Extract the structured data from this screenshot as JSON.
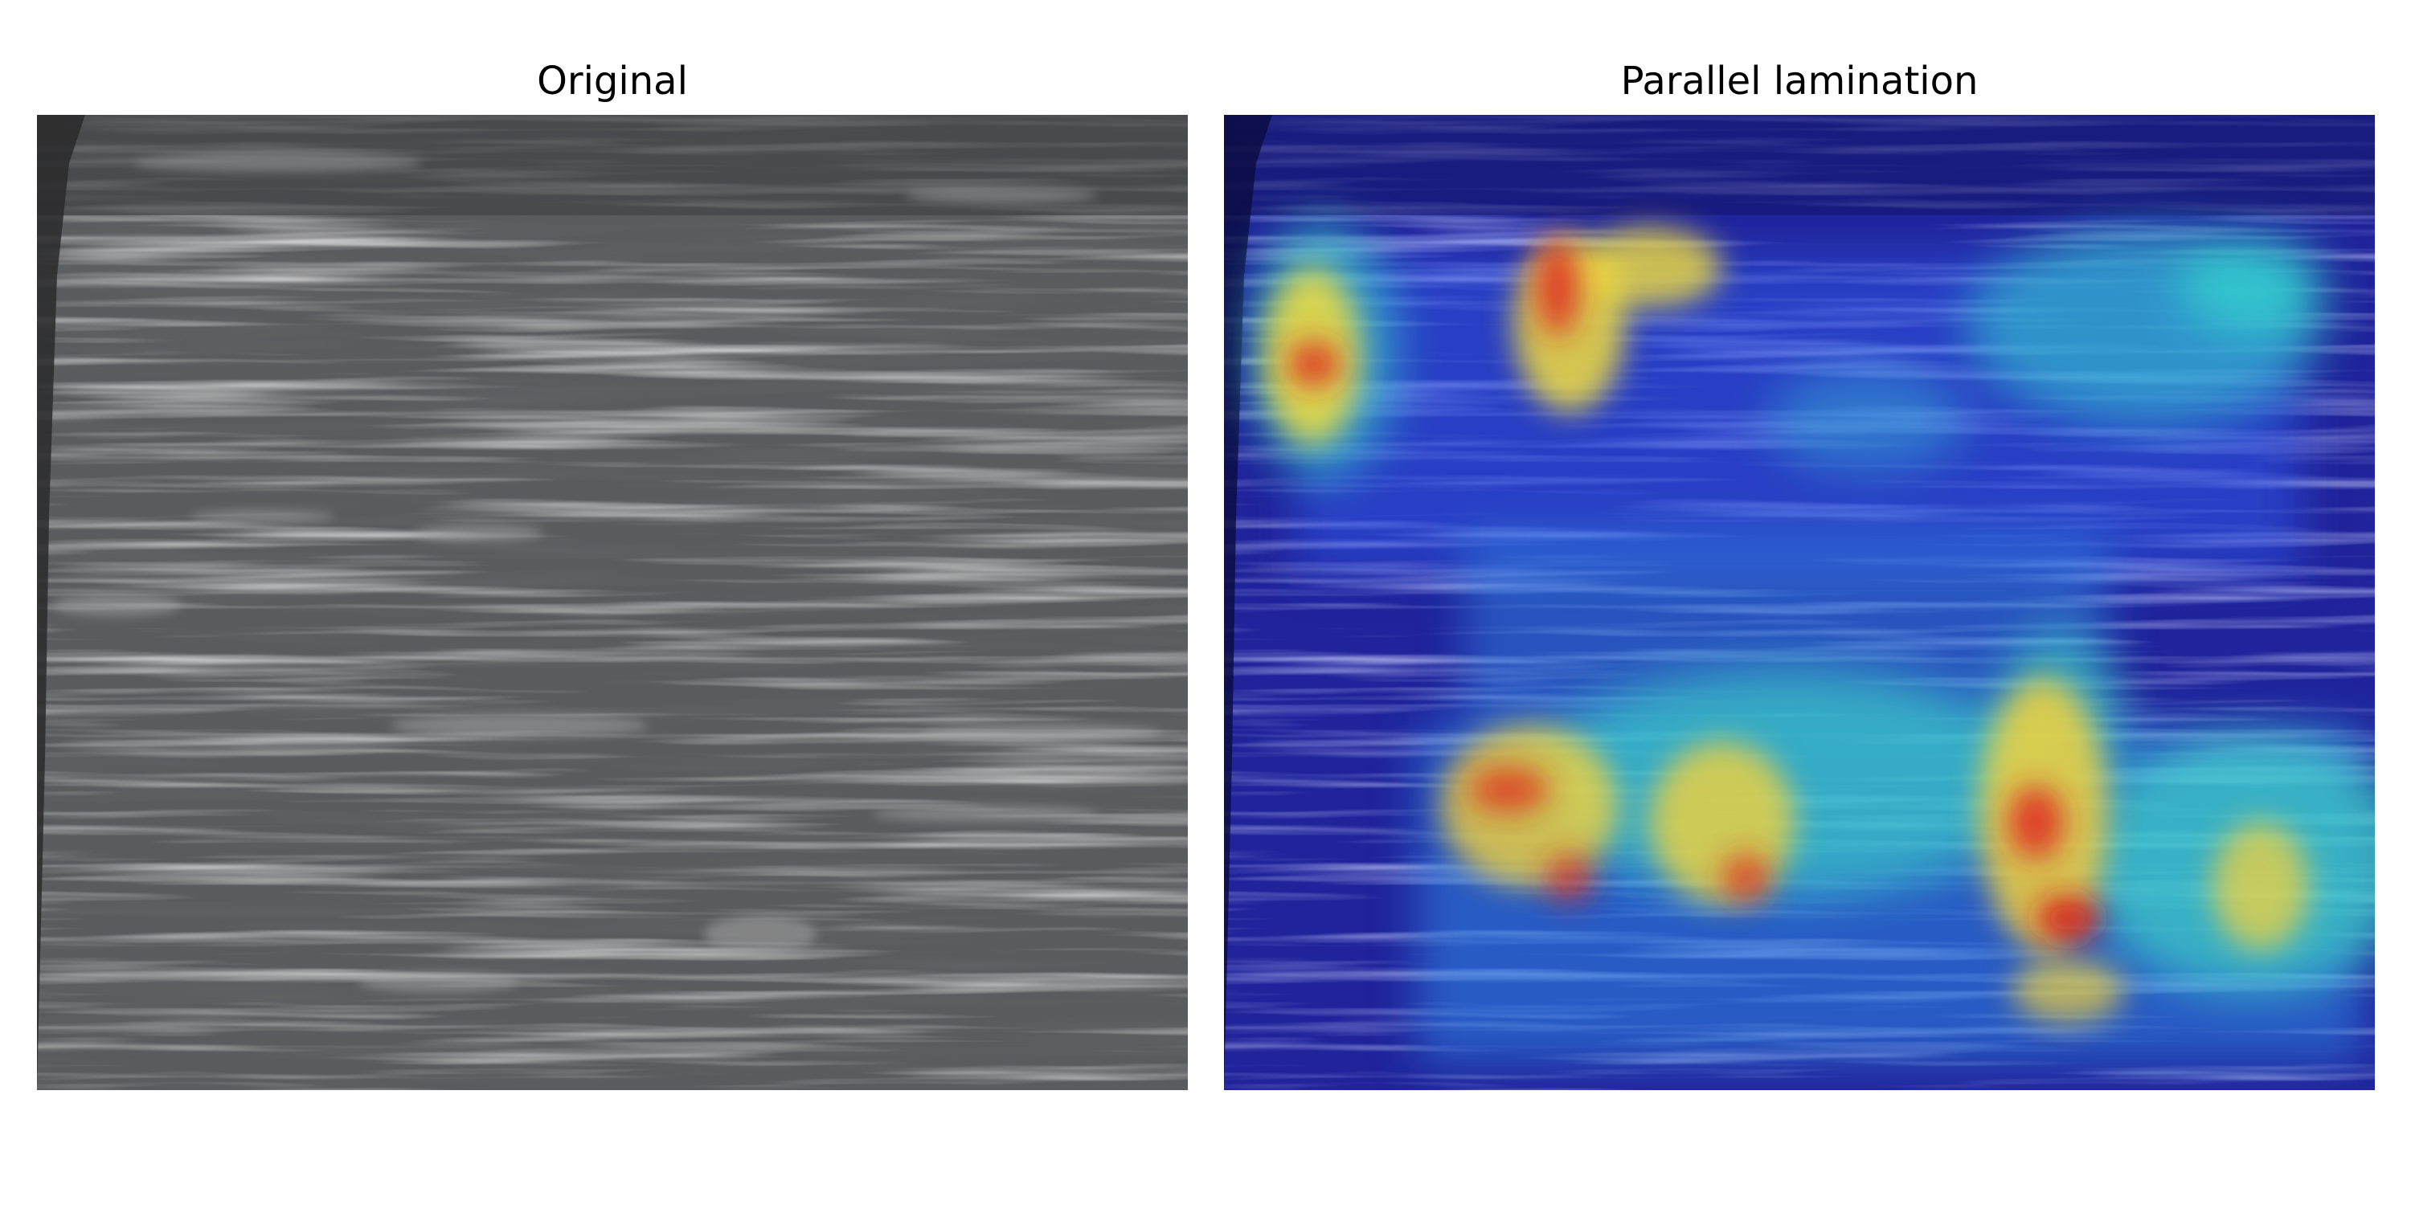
{
  "panels": {
    "left": {
      "title": "Original"
    },
    "right": {
      "title": "Parallel lamination"
    }
  },
  "colors": {
    "background": "#ffffff",
    "rock_base": "#55575c",
    "rock_dark": "#2b2c30",
    "rock_light": "#b9b8b6",
    "overlay_base": "#20239a",
    "heat_cyan": "#36e0d0",
    "heat_yellow": "#f2dd3c",
    "heat_red": "#e0241c"
  }
}
